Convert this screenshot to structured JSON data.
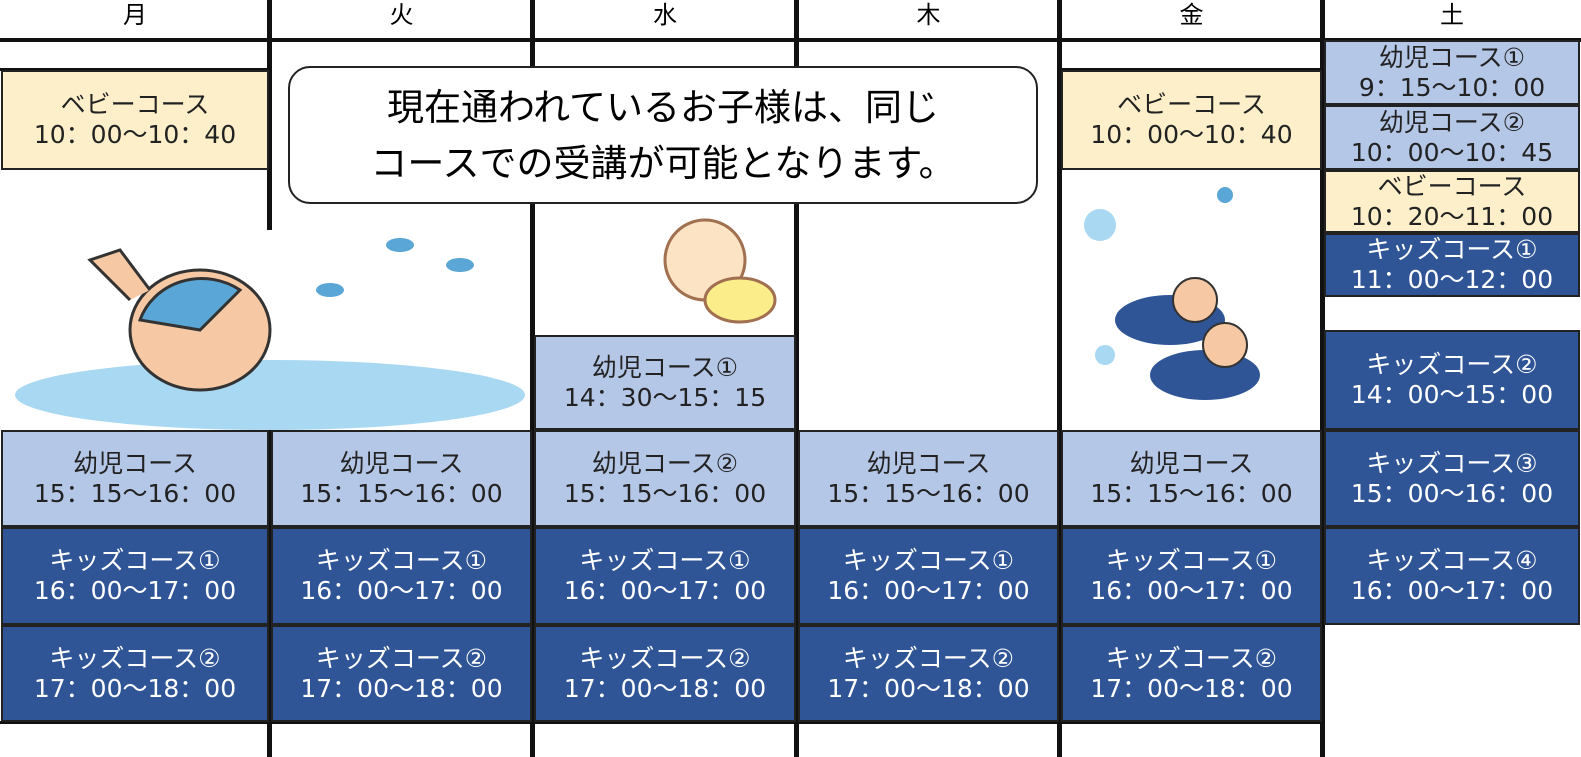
{
  "schedule": {
    "columns": [
      {
        "day": "月",
        "cells": [
          {
            "course": "ベビーコース",
            "time": "10：00～10：40"
          },
          {
            "course": "幼児コース",
            "time": "15：15～16：00"
          },
          {
            "course": "キッズコース①",
            "time": "16：00～17：00"
          },
          {
            "course": "キッズコース②",
            "time": "17：00～18：00"
          }
        ]
      },
      {
        "day": "火",
        "cells": [
          {
            "course": "幼児コース",
            "time": "15：15～16：00"
          },
          {
            "course": "キッズコース①",
            "time": "16：00～17：00"
          },
          {
            "course": "キッズコース②",
            "time": "17：00～18：00"
          }
        ]
      },
      {
        "day": "水",
        "cells": [
          {
            "course": "幼児コース①",
            "time": "14：30～15：15"
          },
          {
            "course": "幼児コース②",
            "time": "15：15～16：00"
          },
          {
            "course": "キッズコース①",
            "time": "16：00～17：00"
          },
          {
            "course": "キッズコース②",
            "time": "17：00～18：00"
          }
        ]
      },
      {
        "day": "木",
        "cells": [
          {
            "course": "幼児コース",
            "time": "15：15～16：00"
          },
          {
            "course": "キッズコース①",
            "time": "16：00～17：00"
          },
          {
            "course": "キッズコース②",
            "time": "17：00～18：00"
          }
        ]
      },
      {
        "day": "金",
        "cells": [
          {
            "course": "ベビーコース",
            "time": "10：00～10：40"
          },
          {
            "course": "幼児コース",
            "time": "15：15～16：00"
          },
          {
            "course": "キッズコース①",
            "time": "16：00～17：00"
          },
          {
            "course": "キッズコース②",
            "time": "17：00～18：00"
          }
        ]
      },
      {
        "day": "土",
        "cells": [
          {
            "course": "幼児コース①",
            "time": "9：15～10：00"
          },
          {
            "course": "幼児コース②",
            "time": "10：00～10：45"
          },
          {
            "course": "ベビーコース",
            "time": "10：20～11：00"
          },
          {
            "course": "キッズコース①",
            "time": "11：00～12：00"
          },
          {
            "course": "キッズコース②",
            "time": "14：00～15：00"
          },
          {
            "course": "キッズコース③",
            "time": "15：00～16：00"
          },
          {
            "course": "キッズコース④",
            "time": "16：00～17：00"
          }
        ]
      }
    ]
  },
  "notice": {
    "lines": [
      "現在通われているお子様は、同じ",
      "コースでの受講が可能となります。"
    ]
  }
}
